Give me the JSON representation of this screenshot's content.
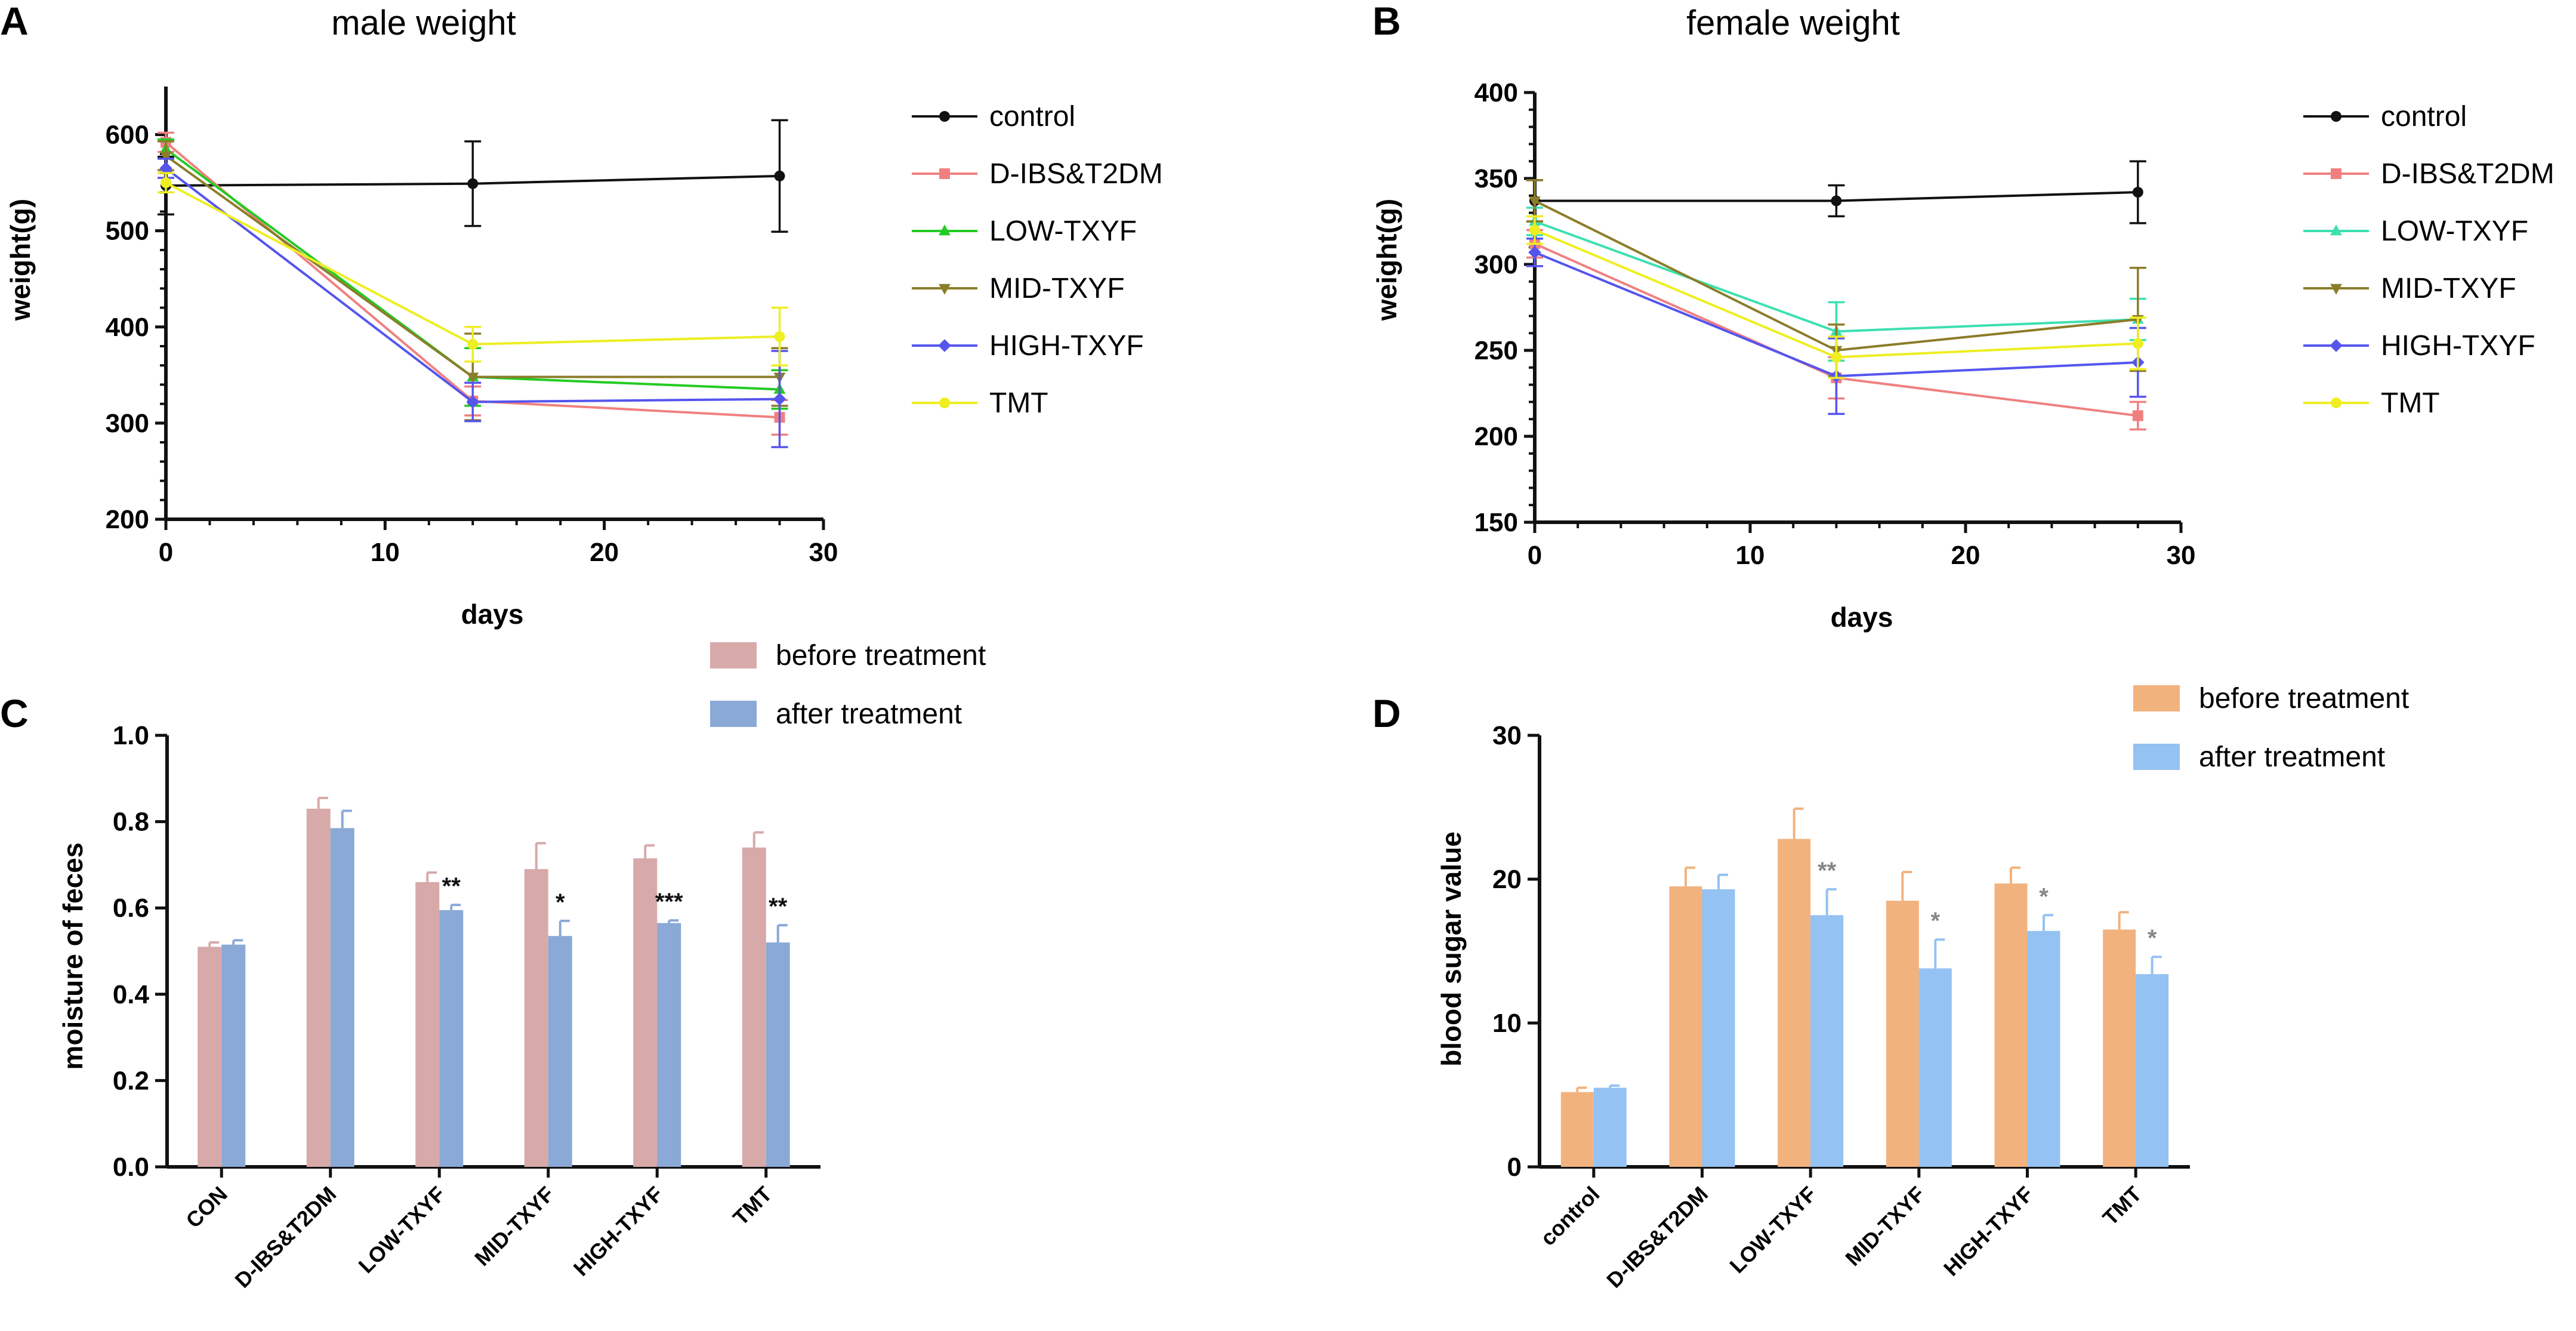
{
  "chart_data": [
    {
      "panel": "A",
      "type": "line",
      "title": "male weight",
      "xlabel": "days",
      "ylabel": "weight(g)",
      "xlim": [
        0,
        30
      ],
      "ylim": [
        200,
        650
      ],
      "xticks": [
        0,
        10,
        20,
        30
      ],
      "yticks": [
        200,
        300,
        400,
        500,
        600
      ],
      "x": [
        0,
        14,
        28
      ],
      "series": [
        {
          "name": "control",
          "color": "#111111",
          "marker": "circle",
          "values": [
            547,
            549,
            557
          ],
          "errors": [
            30,
            44,
            58
          ]
        },
        {
          "name": "D-IBS&T2DM",
          "color": "#f08080",
          "marker": "square",
          "values": [
            592,
            323,
            306
          ],
          "errors": [
            10,
            15,
            18
          ]
        },
        {
          "name": "LOW-TXYF",
          "color": "#22cc22",
          "marker": "triangle-up",
          "values": [
            585,
            348,
            335
          ],
          "errors": [
            10,
            30,
            20
          ]
        },
        {
          "name": "MID-TXYF",
          "color": "#8b7d2a",
          "marker": "triangle-down",
          "values": [
            578,
            348,
            348
          ],
          "errors": [
            15,
            45,
            30
          ]
        },
        {
          "name": "HIGH-TXYF",
          "color": "#5555ee",
          "marker": "diamond",
          "values": [
            565,
            322,
            325
          ],
          "errors": [
            10,
            20,
            50
          ]
        },
        {
          "name": "TMT",
          "color": "#eeee22",
          "marker": "circle",
          "values": [
            550,
            382,
            390
          ],
          "errors": [
            10,
            18,
            30
          ]
        }
      ]
    },
    {
      "panel": "B",
      "type": "line",
      "title": "female weight",
      "xlabel": "days",
      "ylabel": "weight(g)",
      "xlim": [
        0,
        30
      ],
      "ylim": [
        150,
        400
      ],
      "xticks": [
        0,
        10,
        20,
        30
      ],
      "yticks": [
        150,
        200,
        250,
        300,
        350,
        400
      ],
      "x": [
        0,
        14,
        28
      ],
      "series": [
        {
          "name": "control",
          "color": "#111111",
          "marker": "circle",
          "values": [
            337,
            337,
            342
          ],
          "errors": [
            12,
            9,
            18
          ]
        },
        {
          "name": "D-IBS&T2DM",
          "color": "#f08080",
          "marker": "square",
          "values": [
            312,
            234,
            212
          ],
          "errors": [
            8,
            12,
            8
          ]
        },
        {
          "name": "LOW-TXYF",
          "color": "#3de0b0",
          "marker": "triangle-up",
          "values": [
            325,
            261,
            268
          ],
          "errors": [
            8,
            17,
            12
          ]
        },
        {
          "name": "MID-TXYF",
          "color": "#8b7d2a",
          "marker": "triangle-down",
          "values": [
            337,
            250,
            268
          ],
          "errors": [
            12,
            15,
            30
          ]
        },
        {
          "name": "HIGH-TXYF",
          "color": "#5555ee",
          "marker": "diamond",
          "values": [
            307,
            235,
            243
          ],
          "errors": [
            8,
            22,
            20
          ]
        },
        {
          "name": "TMT",
          "color": "#eeee22",
          "marker": "circle",
          "values": [
            320,
            246,
            254
          ],
          "errors": [
            8,
            12,
            15
          ]
        }
      ]
    },
    {
      "panel": "C",
      "type": "bar",
      "title": "",
      "xlabel": "",
      "ylabel": "moisture of feces",
      "ylim": [
        0,
        1.0
      ],
      "yticks": [
        "0.0",
        "0.2",
        "0.4",
        "0.6",
        "0.8",
        "1.0"
      ],
      "categories": [
        "CON",
        "D-IBS&T2DM",
        "LOW-TXYF",
        "MID-TXYF",
        "HIGH-TXYF",
        "TMT"
      ],
      "series": [
        {
          "name": "before treatment",
          "color": "#d8a9a9",
          "values": [
            0.51,
            0.83,
            0.66,
            0.69,
            0.715,
            0.74
          ],
          "errors": [
            0.01,
            0.025,
            0.022,
            0.06,
            0.03,
            0.035
          ]
        },
        {
          "name": "after treatment",
          "color": "#8aa9d6",
          "values": [
            0.515,
            0.785,
            0.595,
            0.535,
            0.565,
            0.52
          ],
          "errors": [
            0.01,
            0.04,
            0.012,
            0.035,
            0.006,
            0.04
          ]
        }
      ],
      "annotations": [
        "",
        "",
        "**",
        "*",
        "***",
        "**"
      ],
      "annotation_color": "#111111"
    },
    {
      "panel": "D",
      "type": "bar",
      "title": "",
      "xlabel": "",
      "ylabel": "blood sugar value",
      "ylim": [
        0,
        30
      ],
      "yticks": [
        "0",
        "10",
        "20",
        "30"
      ],
      "categories": [
        "control",
        "D-IBS&T2DM",
        "LOW-TXYF",
        "MID-TXYF",
        "HIGH-TXYF",
        "TMT"
      ],
      "series": [
        {
          "name": "before treatment",
          "color": "#f2b27e",
          "values": [
            5.2,
            19.5,
            22.8,
            18.5,
            19.7,
            16.5
          ],
          "errors": [
            0.3,
            1.3,
            2.1,
            2.0,
            1.1,
            1.2
          ]
        },
        {
          "name": "after treatment",
          "color": "#94c2f2",
          "values": [
            5.5,
            19.3,
            17.5,
            13.8,
            16.4,
            13.4
          ],
          "errors": [
            0.15,
            1.0,
            1.8,
            2.0,
            1.1,
            1.2
          ]
        }
      ],
      "annotations": [
        "",
        "",
        "**",
        "*",
        "*",
        "*"
      ],
      "annotation_color": "#888888"
    }
  ]
}
